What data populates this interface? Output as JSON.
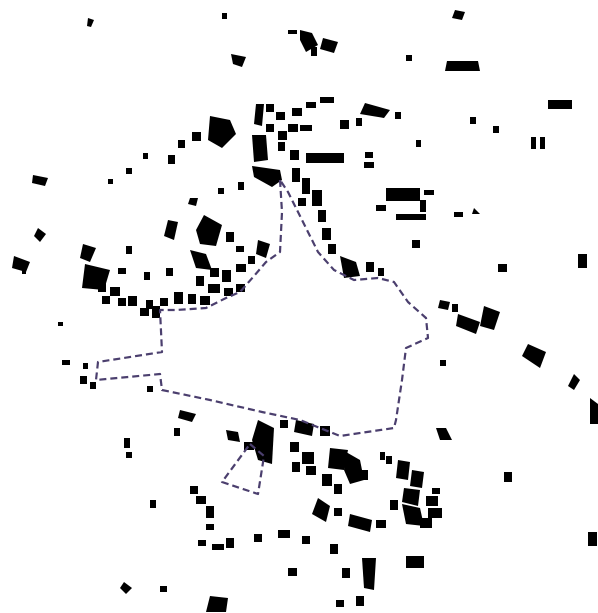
{
  "map": {
    "background_color": "#ffffff",
    "building_color": "#000000",
    "boundary_color": "#4b3f6e",
    "boundary_style": "dashed",
    "labels": []
  }
}
